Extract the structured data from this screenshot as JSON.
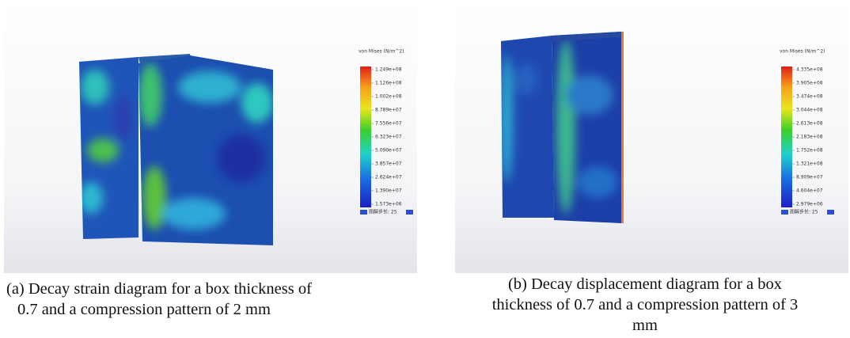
{
  "panels": [
    {
      "legend_title": "von Mises (N/m^2)",
      "colorbar_labels": [
        "1.249e+08",
        "1.126e+08",
        "1.002e+08",
        "8.789e+07",
        "7.556e+07",
        "6.323e+07",
        "5.090e+07",
        "3.857e+07",
        "2.624e+07",
        "1.390e+07",
        "1.573e+06"
      ],
      "step_label": "图解步长: 25",
      "caption": [
        "(a) Decay strain diagram for a box thickness of",
        "0.7 and a compression pattern of 2 mm"
      ]
    },
    {
      "legend_title": "von Mises (N/m^2)",
      "colorbar_labels": [
        "4.335e+08",
        "3.905e+08",
        "3.474e+08",
        "3.044e+08",
        "2.613e+08",
        "2.183e+08",
        "1.752e+08",
        "1.321e+08",
        "8.909e+07",
        "4.604e+07",
        "2.979e+06"
      ],
      "step_label": "图解步长: 25",
      "caption": [
        "(b) Decay displacement diagram for a box",
        "thickness of 0.7 and a compression pattern of 3",
        "mm"
      ]
    }
  ]
}
